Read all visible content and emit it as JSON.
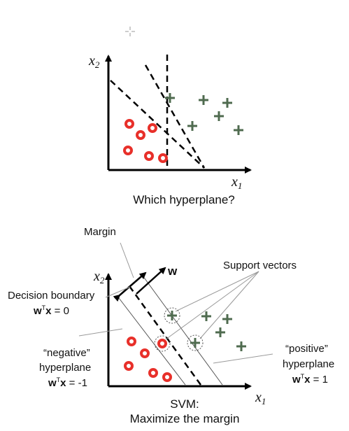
{
  "top_panel": {
    "x2_label": "x",
    "x2_sub": "2",
    "x1_label": "x",
    "x1_sub": "1",
    "caption": "Which hyperplane?"
  },
  "bottom_panel": {
    "x2_label": "x",
    "x2_sub": "2",
    "x1_label": "x",
    "x1_sub": "1",
    "w_label": "w",
    "margin_label": "Margin",
    "support_vectors_label": "Support vectors",
    "decision_boundary": {
      "title": "Decision boundary",
      "eq_w": "w",
      "eq_sup": "T",
      "eq_x": "x",
      "eq_rest": " = 0"
    },
    "negative_hyperplane": {
      "line1": "“negative”",
      "line2": "hyperplane",
      "eq_w": "w",
      "eq_sup": "T",
      "eq_x": "x",
      "eq_rest": " = -1"
    },
    "positive_hyperplane": {
      "line1": "“positive”",
      "line2": "hyperplane",
      "eq_w": "w",
      "eq_sup": "T",
      "eq_x": "x",
      "eq_rest": " = 1"
    },
    "caption_line1": "SVM:",
    "caption_line2": "Maximize the margin"
  },
  "colors": {
    "negative_marker": "#e8302a",
    "positive_marker": "#4f6b4f",
    "axis": "#000000",
    "guide": "#9a9a9a"
  },
  "icons": [
    "plus-marker-icon",
    "circle-marker-icon",
    "cursor-crosshair-icon"
  ]
}
